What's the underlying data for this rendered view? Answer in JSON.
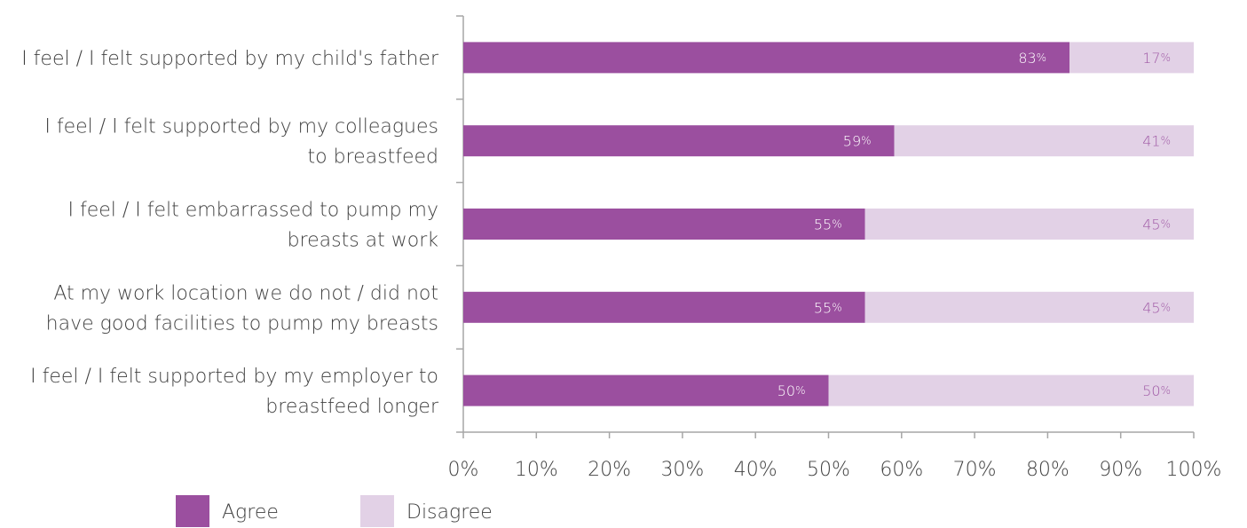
{
  "chart_data": {
    "type": "bar",
    "orientation": "horizontal",
    "stacked": true,
    "categories": [
      [
        "I feel / I felt supported by my child's father"
      ],
      [
        "I feel / I felt supported by my colleagues",
        "to breastfeed"
      ],
      [
        "I feel / I felt embarrassed to pump my",
        "breasts at work"
      ],
      [
        "At my work location we do not / did not",
        "have good facilities to pump my breasts"
      ],
      [
        "I feel / I felt supported by my employer to",
        "breastfeed longer"
      ]
    ],
    "series": [
      {
        "name": "Agree",
        "color": "#9b4f9f",
        "label_color": "#ffffff",
        "values": [
          83,
          59,
          55,
          55,
          50
        ]
      },
      {
        "name": "Disagree",
        "color": "#e2d1e6",
        "label_color": "#a05aa6",
        "values": [
          17,
          41,
          45,
          45,
          50
        ]
      }
    ],
    "xlim": [
      0,
      100
    ],
    "xticks": [
      "0%",
      "10%",
      "20%",
      "30%",
      "40%",
      "50%",
      "60%",
      "70%",
      "80%",
      "90%",
      "100%"
    ],
    "grid": false,
    "legend": "bottom-left"
  }
}
